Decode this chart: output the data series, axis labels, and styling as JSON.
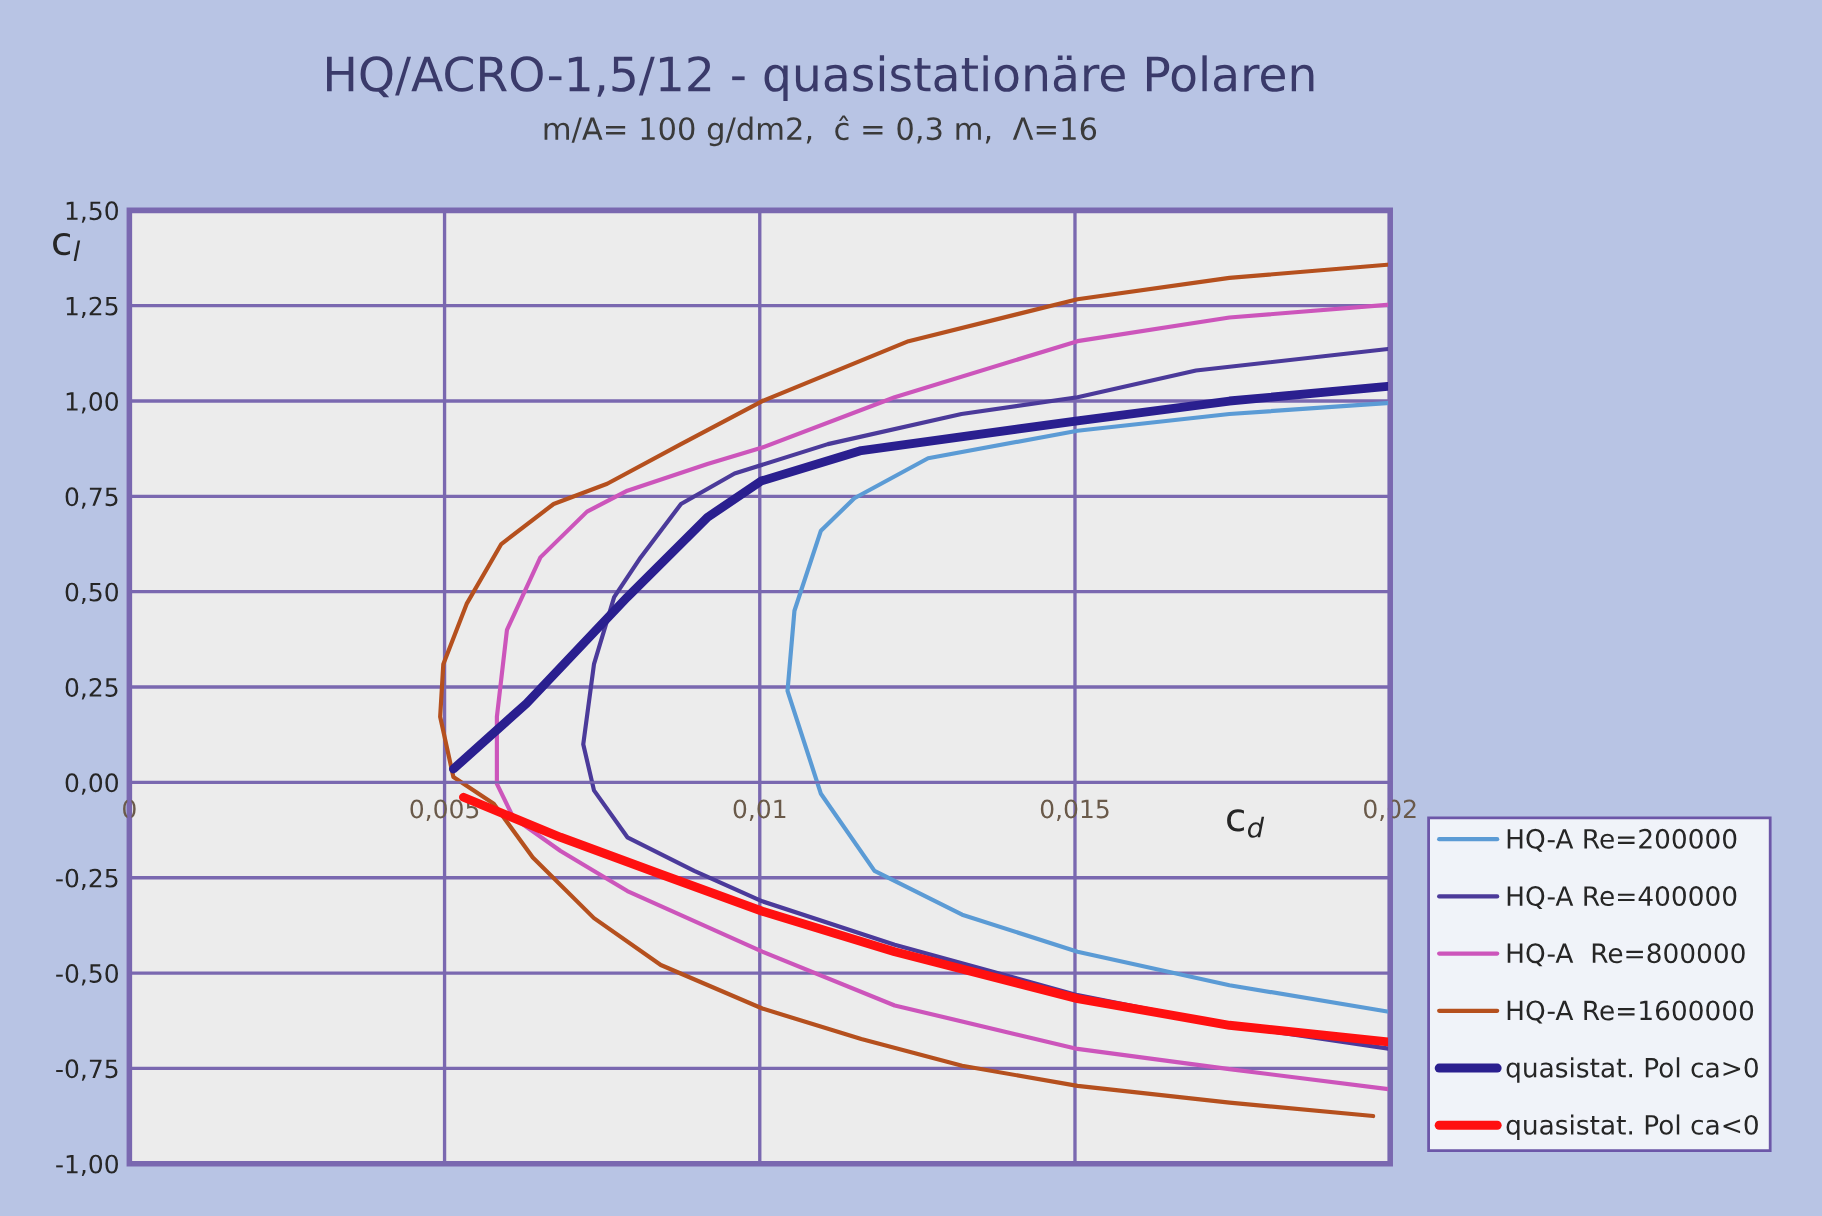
{
  "chart_data": {
    "type": "line",
    "title": "HQ/ACRO-1,5/12 - quasistationäre Polaren",
    "subtitle": "m/A= 100 g/dm2,  ĉ = 0,3 m,  Λ=16",
    "xlabel": "c$_{d}$",
    "ylabel": "c$_{l}$",
    "xlim": [
      0,
      0.02
    ],
    "ylim": [
      -1.0,
      1.5
    ],
    "xticks": [
      {
        "value": 0,
        "label": "0"
      },
      {
        "value": 0.005,
        "label": "0,005"
      },
      {
        "value": 0.01,
        "label": "0,01"
      },
      {
        "value": 0.015,
        "label": "0,015"
      },
      {
        "value": 0.02,
        "label": "0,02"
      }
    ],
    "yticks": [
      {
        "value": -1.0,
        "label": "-1,00"
      },
      {
        "value": -0.75,
        "label": "-0,75"
      },
      {
        "value": -0.5,
        "label": "-0,50"
      },
      {
        "value": -0.25,
        "label": "-0,25"
      },
      {
        "value": 0,
        "label": "0,00"
      },
      {
        "value": 0.25,
        "label": "0,25"
      },
      {
        "value": 0.5,
        "label": "0,50"
      },
      {
        "value": 0.75,
        "label": "0,75"
      },
      {
        "value": 1.0,
        "label": "1,00"
      },
      {
        "value": 1.25,
        "label": "1,25"
      },
      {
        "value": 1.5,
        "label": "1,50"
      }
    ],
    "grid": true,
    "legend": "right",
    "marker": "none",
    "line_style": "solid",
    "series": [
      {
        "name": "HQ-A Re=200000",
        "color": "#5b9bd5",
        "x": [
          0.02,
          0.01745,
          0.01504,
          0.01321,
          0.01182,
          0.01108,
          0.01097,
          0.01044,
          0.01055,
          0.01097,
          0.0115,
          0.01267,
          0.01504,
          0.01745,
          0.02
        ],
        "values": [
          -0.602,
          -0.532,
          -0.444,
          -0.347,
          -0.232,
          -0.056,
          -0.03,
          0.24,
          0.45,
          0.66,
          0.745,
          0.85,
          0.922,
          0.966,
          0.995
        ]
      },
      {
        "name": "HQ-A Re=400000",
        "color": "#4b3a9a",
        "x": [
          0.02,
          0.01745,
          0.01504,
          0.01214,
          0.01004,
          0.00896,
          0.0079,
          0.00737,
          0.0072,
          0.00737,
          0.00769,
          0.00811,
          0.00875,
          0.0096,
          0.01108,
          0.0132,
          0.01504,
          0.01692,
          0.02
        ],
        "values": [
          -0.699,
          -0.637,
          -0.558,
          -0.426,
          -0.312,
          -0.232,
          -0.144,
          -0.021,
          0.1,
          0.31,
          0.486,
          0.59,
          0.73,
          0.81,
          0.887,
          0.966,
          1.01,
          1.08,
          1.137
        ]
      },
      {
        "name": "HQ-A  Re=800000",
        "color": "#cc55bb",
        "x": [
          0.02,
          0.01745,
          0.01504,
          0.01214,
          0.01004,
          0.0079,
          0.00684,
          0.00609,
          0.00583,
          0.00583,
          0.00599,
          0.00652,
          0.00726,
          0.0079,
          0.00917,
          0.01004,
          0.01214,
          0.01504,
          0.01745,
          0.02
        ],
        "values": [
          -0.805,
          -0.752,
          -0.699,
          -0.585,
          -0.444,
          -0.285,
          -0.18,
          -0.092,
          -0.004,
          0.172,
          0.4,
          0.59,
          0.71,
          0.765,
          0.835,
          0.878,
          1.01,
          1.157,
          1.219,
          1.253
        ]
      },
      {
        "name": "HQ-A Re=1600000",
        "color": "#b5501e",
        "x": [
          0.01973,
          0.01745,
          0.01504,
          0.01321,
          0.01161,
          0.01004,
          0.00843,
          0.00737,
          0.0064,
          0.00578,
          0.00514,
          0.00493,
          0.00498,
          0.00535,
          0.0059,
          0.00673,
          0.00758,
          0.00875,
          0.01004,
          0.01236,
          0.01504,
          0.01745,
          0.02
        ],
        "values": [
          -0.875,
          -0.84,
          -0.796,
          -0.743,
          -0.673,
          -0.593,
          -0.479,
          -0.356,
          -0.197,
          -0.056,
          0.014,
          0.172,
          0.31,
          0.468,
          0.625,
          0.73,
          0.783,
          0.887,
          1.0,
          1.157,
          1.267,
          1.323,
          1.358
        ]
      },
      {
        "name": "quasistat. Pol ca>0",
        "color": "#2a1f8f",
        "x": [
          0.00514,
          0.0063,
          0.0079,
          0.00917,
          0.01002,
          0.01161,
          0.01504,
          0.01745,
          0.02
        ],
        "values": [
          0.035,
          0.207,
          0.486,
          0.695,
          0.79,
          0.87,
          0.948,
          1.0,
          1.039
        ]
      },
      {
        "name": "quasistat. Pol ca<0",
        "color": "#ff1010",
        "x": [
          0.0053,
          0.00684,
          0.00843,
          0.01004,
          0.01214,
          0.01504,
          0.01745,
          0.02
        ],
        "values": [
          -0.039,
          -0.144,
          -0.241,
          -0.338,
          -0.444,
          -0.567,
          -0.637,
          -0.681
        ]
      }
    ]
  }
}
